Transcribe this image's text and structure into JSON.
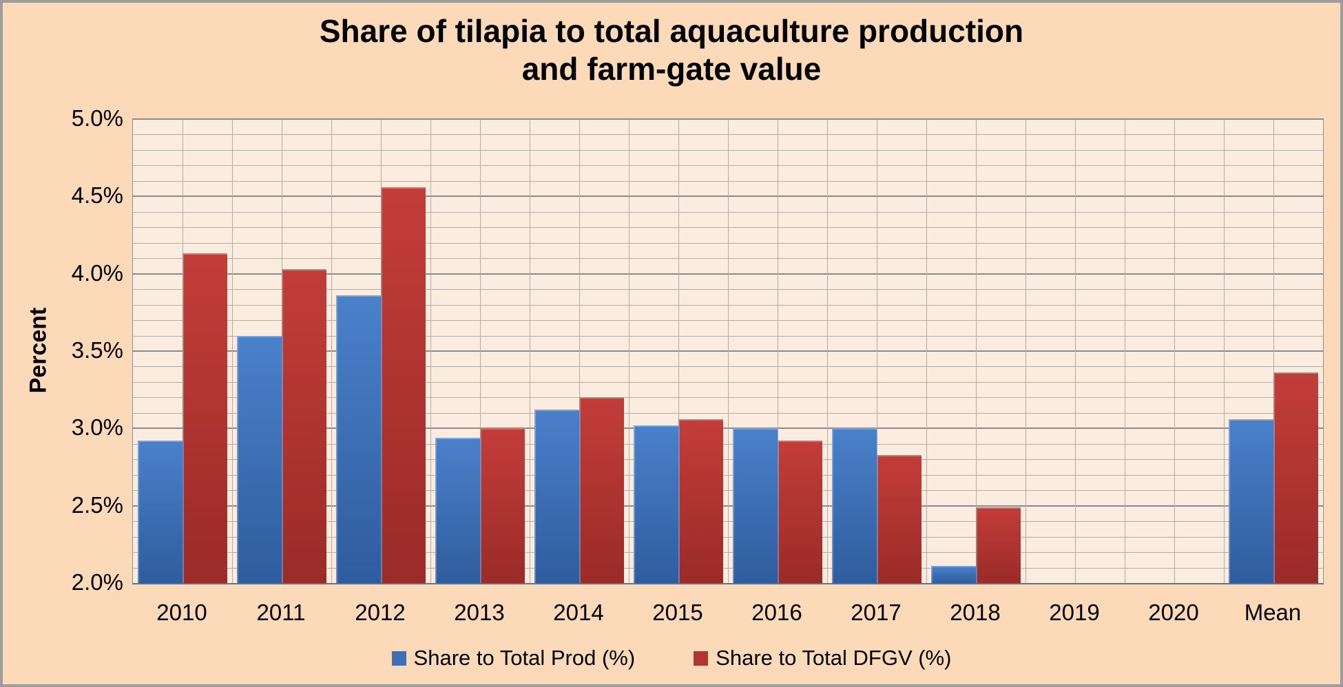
{
  "chart": {
    "title_line1": "Share of tilapia to total aquaculture production",
    "title_line2": "and farm-gate value",
    "y_axis_title": "Percent"
  },
  "colors": {
    "canvas_background": "#FCD9B9",
    "plot_background": "#FAECDE",
    "grid_minor": "#B2ACA6",
    "grid_major": "#8A8A8A",
    "outer_border": "#9C9C9C",
    "series_blue": "#3E74C0",
    "series_red": "#B83633"
  },
  "chart_data": {
    "type": "bar",
    "title": "Share of tilapia to total aquaculture production and farm-gate value",
    "xlabel": "",
    "ylabel": "Percent",
    "categories": [
      "2010",
      "2011",
      "2012",
      "2013",
      "2014",
      "2015",
      "2016",
      "2017",
      "2018",
      "2019",
      "2020",
      "Mean"
    ],
    "series": [
      {
        "name": "Share to Total Prod (%)",
        "color": "#3E6FB5",
        "color_top": "#4A81CA",
        "color_bottom": "#2F5C9D",
        "values": [
          2.92,
          3.6,
          3.86,
          2.94,
          3.12,
          3.02,
          3.0,
          3.0,
          2.11,
          null,
          null,
          3.06
        ]
      },
      {
        "name": "Share to Total DFGV (%)",
        "color": "#B23431",
        "color_top": "#C33D39",
        "color_bottom": "#9A2B28",
        "values": [
          4.13,
          4.03,
          4.56,
          3.0,
          3.2,
          3.06,
          2.92,
          2.83,
          2.49,
          null,
          null,
          3.36
        ]
      }
    ],
    "ylim": [
      2.0,
      5.0
    ],
    "y_tick_labels": [
      "2.0%",
      "2.5%",
      "3.0%",
      "3.5%",
      "4.0%",
      "4.5%",
      "5.0%"
    ],
    "y_tick_step": 0.5,
    "minor_grid_step": 0.1,
    "grid": true,
    "legend_position": "bottom"
  }
}
